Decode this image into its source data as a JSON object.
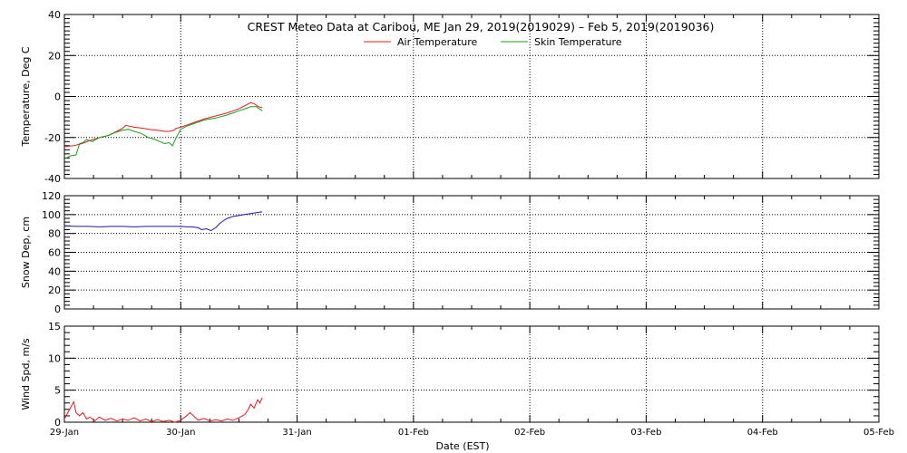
{
  "chart_data": {
    "title": "CREST Meteo Data at Caribou, ME   Jan 29, 2019(2019029) – Feb  5, 2019(2019036)",
    "xlabel": "Date (EST)",
    "x_ticks": [
      "29-Jan",
      "30-Jan",
      "31-Jan",
      "01-Feb",
      "02-Feb",
      "03-Feb",
      "04-Feb",
      "05-Feb"
    ],
    "x_range_days": [
      0,
      7
    ],
    "grid": true,
    "panels": [
      {
        "type": "line",
        "ylabel": "Temperature, Deg C",
        "ylim": [
          -40,
          40
        ],
        "yticks": [
          -40,
          -20,
          0,
          20,
          40
        ],
        "legend_position": "top-center",
        "series": [
          {
            "name": "Air Temperature",
            "color": "#e41a1c",
            "points": [
              [
                0.0,
                -24.5
              ],
              [
                0.08,
                -24.0
              ],
              [
                0.15,
                -23.0
              ],
              [
                0.22,
                -21.5
              ],
              [
                0.3,
                -20.0
              ],
              [
                0.38,
                -19.0
              ],
              [
                0.45,
                -17.0
              ],
              [
                0.5,
                -15.5
              ],
              [
                0.53,
                -14.0
              ],
              [
                0.56,
                -14.5
              ],
              [
                0.6,
                -15.0
              ],
              [
                0.68,
                -15.5
              ],
              [
                0.72,
                -16.0
              ],
              [
                0.8,
                -16.5
              ],
              [
                0.86,
                -17.0
              ],
              [
                0.9,
                -17.0
              ],
              [
                0.94,
                -16.5
              ],
              [
                0.96,
                -15.5
              ],
              [
                1.0,
                -15.0
              ],
              [
                1.05,
                -14.0
              ],
              [
                1.1,
                -13.0
              ],
              [
                1.2,
                -11.0
              ],
              [
                1.3,
                -9.5
              ],
              [
                1.4,
                -8.0
              ],
              [
                1.5,
                -6.0
              ],
              [
                1.55,
                -4.5
              ],
              [
                1.6,
                -3.0
              ],
              [
                1.63,
                -3.5
              ],
              [
                1.67,
                -5.0
              ],
              [
                1.7,
                -5.5
              ]
            ]
          },
          {
            "name": "Skin Temperature",
            "color": "#1aa01a",
            "points": [
              [
                0.0,
                -30.5
              ],
              [
                0.05,
                -29.0
              ],
              [
                0.1,
                -28.5
              ],
              [
                0.13,
                -23.0
              ],
              [
                0.16,
                -22.5
              ],
              [
                0.19,
                -21.0
              ],
              [
                0.24,
                -22.0
              ],
              [
                0.3,
                -20.0
              ],
              [
                0.38,
                -19.0
              ],
              [
                0.44,
                -17.5
              ],
              [
                0.5,
                -16.5
              ],
              [
                0.55,
                -16.0
              ],
              [
                0.6,
                -17.0
              ],
              [
                0.66,
                -18.0
              ],
              [
                0.72,
                -20.0
              ],
              [
                0.78,
                -21.0
              ],
              [
                0.82,
                -22.0
              ],
              [
                0.86,
                -23.0
              ],
              [
                0.9,
                -22.5
              ],
              [
                0.93,
                -24.0
              ],
              [
                0.96,
                -20.0
              ],
              [
                1.0,
                -16.0
              ],
              [
                1.05,
                -14.5
              ],
              [
                1.1,
                -13.5
              ],
              [
                1.2,
                -11.5
              ],
              [
                1.3,
                -10.5
              ],
              [
                1.4,
                -9.0
              ],
              [
                1.5,
                -7.0
              ],
              [
                1.55,
                -6.0
              ],
              [
                1.6,
                -5.0
              ],
              [
                1.65,
                -5.0
              ],
              [
                1.7,
                -7.0
              ]
            ]
          }
        ]
      },
      {
        "type": "line",
        "ylabel": "Snow Dep, cm",
        "ylim": [
          0,
          120
        ],
        "yticks": [
          0,
          20,
          40,
          60,
          80,
          100,
          120
        ],
        "series": [
          {
            "color": "#1a1aa0",
            "points": [
              [
                0.0,
                88.0
              ],
              [
                0.1,
                87.5
              ],
              [
                0.2,
                87.5
              ],
              [
                0.3,
                87.0
              ],
              [
                0.4,
                87.5
              ],
              [
                0.5,
                87.5
              ],
              [
                0.6,
                87.0
              ],
              [
                0.7,
                87.5
              ],
              [
                0.8,
                87.5
              ],
              [
                0.9,
                87.5
              ],
              [
                1.0,
                87.5
              ],
              [
                1.05,
                87.0
              ],
              [
                1.1,
                87.0
              ],
              [
                1.15,
                86.0
              ],
              [
                1.18,
                84.0
              ],
              [
                1.22,
                85.0
              ],
              [
                1.26,
                83.0
              ],
              [
                1.3,
                86.0
              ],
              [
                1.33,
                90.0
              ],
              [
                1.36,
                93.0
              ],
              [
                1.4,
                96.0
              ],
              [
                1.45,
                98.0
              ],
              [
                1.5,
                99.0
              ],
              [
                1.55,
                100.0
              ],
              [
                1.6,
                101.0
              ],
              [
                1.65,
                102.0
              ],
              [
                1.7,
                103.0
              ]
            ]
          }
        ]
      },
      {
        "type": "line",
        "ylabel": "Wind Spd, m/s",
        "ylim": [
          0,
          15
        ],
        "yticks": [
          0,
          5,
          10,
          15
        ],
        "series": [
          {
            "color": "#e41a1c",
            "points": [
              [
                0.0,
                0.5
              ],
              [
                0.03,
                1.5
              ],
              [
                0.06,
                2.5
              ],
              [
                0.08,
                3.2
              ],
              [
                0.1,
                1.5
              ],
              [
                0.13,
                1.0
              ],
              [
                0.16,
                1.5
              ],
              [
                0.19,
                0.5
              ],
              [
                0.22,
                0.8
              ],
              [
                0.26,
                0.2
              ],
              [
                0.3,
                0.8
              ],
              [
                0.35,
                0.3
              ],
              [
                0.4,
                0.6
              ],
              [
                0.45,
                0.2
              ],
              [
                0.5,
                0.5
              ],
              [
                0.55,
                0.3
              ],
              [
                0.6,
                0.7
              ],
              [
                0.65,
                0.2
              ],
              [
                0.7,
                0.5
              ],
              [
                0.75,
                0.1
              ],
              [
                0.8,
                0.4
              ],
              [
                0.85,
                0.1
              ],
              [
                0.9,
                0.3
              ],
              [
                0.95,
                0.0
              ],
              [
                1.0,
                0.3
              ],
              [
                1.05,
                1.0
              ],
              [
                1.08,
                1.5
              ],
              [
                1.12,
                0.8
              ],
              [
                1.15,
                0.3
              ],
              [
                1.2,
                0.6
              ],
              [
                1.25,
                0.2
              ],
              [
                1.3,
                0.4
              ],
              [
                1.35,
                0.2
              ],
              [
                1.4,
                0.5
              ],
              [
                1.45,
                0.3
              ],
              [
                1.5,
                0.7
              ],
              [
                1.55,
                1.2
              ],
              [
                1.58,
                2.0
              ],
              [
                1.6,
                2.8
              ],
              [
                1.63,
                2.2
              ],
              [
                1.66,
                3.5
              ],
              [
                1.68,
                3.0
              ],
              [
                1.7,
                3.8
              ]
            ]
          }
        ]
      }
    ]
  }
}
